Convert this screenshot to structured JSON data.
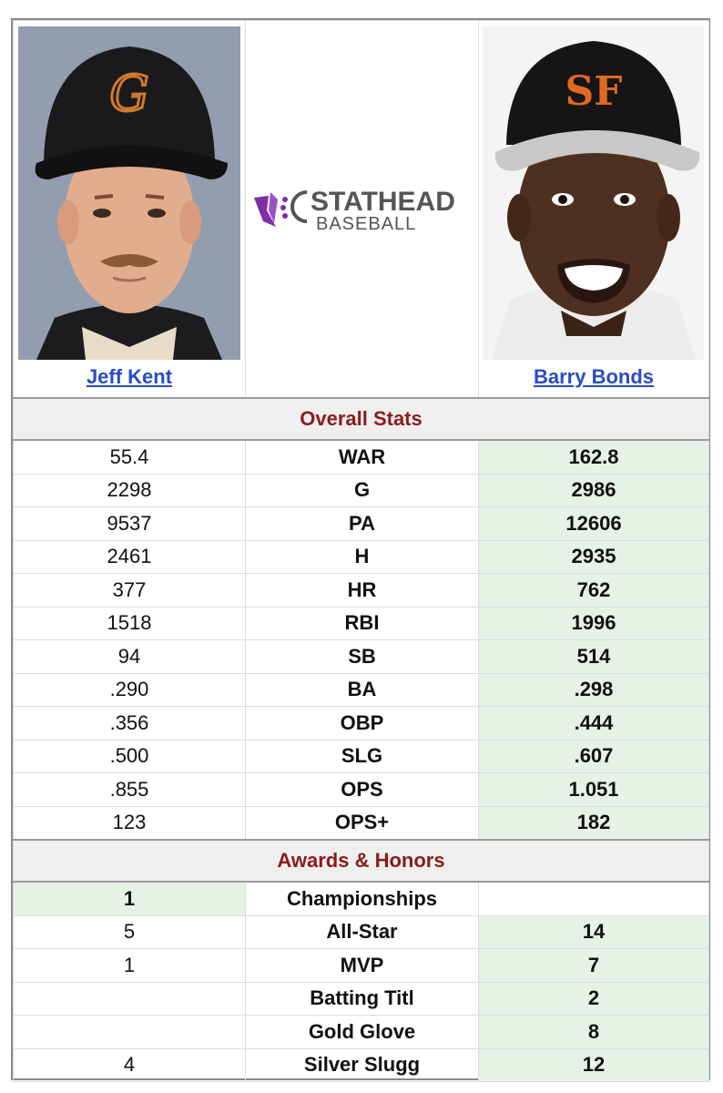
{
  "players": {
    "left": {
      "name": "Jeff Kent"
    },
    "right": {
      "name": "Barry Bonds"
    }
  },
  "logo": {
    "brand_top": "STATHEAD",
    "brand_bottom": "BASEBALL",
    "accent": "#7b2fa8"
  },
  "sections": {
    "overall": "Overall Stats",
    "awards": "Awards & Honors"
  },
  "overall_stats": [
    {
      "label": "WAR",
      "left": "55.4",
      "right": "162.8",
      "winner": "right"
    },
    {
      "label": "G",
      "left": "2298",
      "right": "2986",
      "winner": "right"
    },
    {
      "label": "PA",
      "left": "9537",
      "right": "12606",
      "winner": "right"
    },
    {
      "label": "H",
      "left": "2461",
      "right": "2935",
      "winner": "right"
    },
    {
      "label": "HR",
      "left": "377",
      "right": "762",
      "winner": "right"
    },
    {
      "label": "RBI",
      "left": "1518",
      "right": "1996",
      "winner": "right"
    },
    {
      "label": "SB",
      "left": "94",
      "right": "514",
      "winner": "right"
    },
    {
      "label": "BA",
      "left": ".290",
      "right": ".298",
      "winner": "right"
    },
    {
      "label": "OBP",
      "left": ".356",
      "right": ".444",
      "winner": "right"
    },
    {
      "label": "SLG",
      "left": ".500",
      "right": ".607",
      "winner": "right"
    },
    {
      "label": "OPS",
      "left": ".855",
      "right": "1.051",
      "winner": "right"
    },
    {
      "label": "OPS+",
      "left": "123",
      "right": "182",
      "winner": "right"
    }
  ],
  "awards": [
    {
      "label": "Championships",
      "left": "1",
      "right": "",
      "winner": "left"
    },
    {
      "label": "All-Star",
      "left": "5",
      "right": "14",
      "winner": "right"
    },
    {
      "label": "MVP",
      "left": "1",
      "right": "7",
      "winner": "right"
    },
    {
      "label": "Batting Titl",
      "left": "",
      "right": "2",
      "winner": "right"
    },
    {
      "label": "Gold Glove",
      "left": "",
      "right": "8",
      "winner": "right"
    },
    {
      "label": "Silver Slugg",
      "left": "4",
      "right": "12",
      "winner": "right"
    }
  ]
}
